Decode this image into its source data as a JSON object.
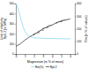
{
  "chart_data": {
    "type": "line",
    "xlabel": "Magnesium (in % of mass)",
    "ylabel": "Limit of elasticity\nRp0.2 (in MPa)",
    "y2label": "Rm (in % of values)",
    "series": [
      {
        "name": "Rm(%)",
        "color": "#88d8f0",
        "x": [
          0.0,
          0.2,
          0.4,
          0.6,
          0.8,
          1.0,
          1.2,
          1.5,
          1.8,
          2.0,
          2.5,
          3.0,
          3.5,
          4.0,
          4.5,
          5.0,
          5.5,
          6.0
        ],
        "values": [
          500,
          460,
          400,
          330,
          270,
          225,
          195,
          175,
          165,
          160,
          157,
          155,
          154,
          153,
          152,
          151,
          150,
          150
        ]
      },
      {
        "name": "Rp0.2",
        "color": "#444444",
        "axis": "y2",
        "x": [
          0.0,
          0.5,
          1.0,
          1.5,
          2.0,
          2.5,
          3.0,
          3.5,
          4.0,
          4.5,
          5.0,
          5.5,
          6.0
        ],
        "values": [
          60,
          80,
          110,
          135,
          155,
          175,
          200,
          215,
          230,
          248,
          260,
          270,
          278
        ]
      }
    ],
    "xlim": [
      0,
      6.5
    ],
    "xticks": [
      0,
      1,
      2,
      3,
      4,
      5,
      6
    ],
    "ylim": [
      0,
      500
    ],
    "yticks": [
      0,
      100,
      200,
      300,
      400,
      500
    ],
    "y2lim": [
      0,
      400
    ],
    "y2ticks": [
      0,
      100,
      200,
      300,
      400
    ],
    "annotations": [
      {
        "x": 2.0,
        "y": 155,
        "text": "6061",
        "axis": "y2"
      },
      {
        "x": 2.5,
        "y": 175,
        "text": "5052",
        "axis": "y2"
      },
      {
        "x": 3.0,
        "y": 200,
        "text": "5154",
        "axis": "y2"
      },
      {
        "x": 3.5,
        "y": 215,
        "text": "5454",
        "axis": "y2"
      },
      {
        "x": 4.5,
        "y": 248,
        "text": "5086",
        "axis": "y2"
      },
      {
        "x": 5.0,
        "y": 260,
        "text": "5456",
        "axis": "y2"
      }
    ],
    "grid": false,
    "legend": "bottom"
  }
}
